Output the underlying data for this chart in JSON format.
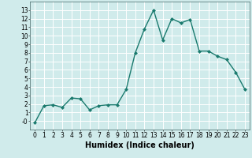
{
  "x": [
    0,
    1,
    2,
    3,
    4,
    5,
    6,
    7,
    8,
    9,
    10,
    11,
    12,
    13,
    14,
    15,
    16,
    17,
    18,
    19,
    20,
    21,
    22,
    23
  ],
  "y": [
    -0.2,
    1.8,
    1.9,
    1.6,
    2.7,
    2.6,
    1.3,
    1.8,
    1.9,
    1.9,
    3.7,
    8.0,
    10.8,
    13.0,
    9.5,
    12.0,
    11.5,
    11.9,
    8.2,
    8.2,
    7.6,
    7.2,
    5.7,
    3.7
  ],
  "line_color": "#1a7a6e",
  "marker": "D",
  "marker_size": 2,
  "bg_color": "#d0ebeb",
  "grid_color": "#ffffff",
  "xlabel": "Humidex (Indice chaleur)",
  "xlabel_fontsize": 7,
  "xlim": [
    -0.5,
    23.5
  ],
  "ylim": [
    -1,
    14
  ],
  "yticks": [
    0,
    1,
    2,
    3,
    4,
    5,
    6,
    7,
    8,
    9,
    10,
    11,
    12,
    13
  ],
  "xticks": [
    0,
    1,
    2,
    3,
    4,
    5,
    6,
    7,
    8,
    9,
    10,
    11,
    12,
    13,
    14,
    15,
    16,
    17,
    18,
    19,
    20,
    21,
    22,
    23
  ],
  "tick_fontsize": 5.5,
  "line_width": 1.0,
  "ytick_labels": [
    "-0",
    "1",
    "2",
    "3",
    "4",
    "5",
    "6",
    "7",
    "8",
    "9",
    "10",
    "11",
    "12",
    "13"
  ]
}
